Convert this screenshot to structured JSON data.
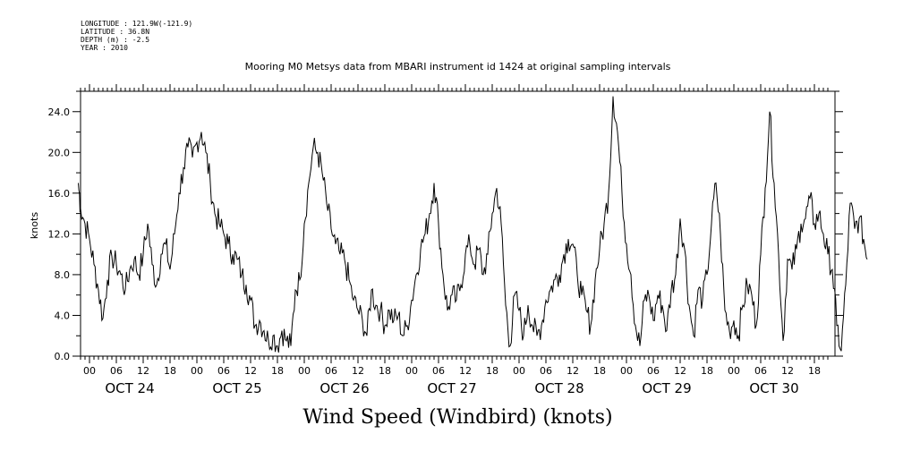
{
  "meta": {
    "longitude": "LONGITUDE : 121.9W(-121.9)",
    "latitude": "LATITUDE : 36.8N",
    "depth": "DEPTH (m) : -2.5",
    "year": "YEAR : 2010"
  },
  "chart_data": {
    "type": "line",
    "title": "Mooring M0 Metsys data from MBARI instrument id 1424 at original sampling intervals",
    "footer": "Wind Speed (Windbird) (knots)",
    "ylabel": "knots",
    "ylim": [
      0,
      26.0
    ],
    "yticks": [
      "0.0",
      "4.0",
      "8.0",
      "12.0",
      "16.0",
      "20.0",
      "24.0"
    ],
    "yvalues": [
      0,
      4,
      8,
      12,
      16,
      20,
      24
    ],
    "xlim_hours": [
      -3,
      165
    ],
    "hour_labels": [
      "00",
      "06",
      "12",
      "18",
      "00",
      "06",
      "12",
      "18",
      "00",
      "06",
      "12",
      "18",
      "00",
      "06",
      "12",
      "18",
      "00",
      "06",
      "12",
      "18",
      "00",
      "06",
      "12",
      "18",
      "00",
      "06",
      "12",
      "18"
    ],
    "day_labels": [
      "OCT 24",
      "OCT 25",
      "OCT 26",
      "OCT 27",
      "OCT 28",
      "OCT 29",
      "OCT 30"
    ],
    "line_color": "#000000",
    "keypoints": [
      [
        -2.5,
        17.0
      ],
      [
        -2,
        14.5
      ],
      [
        -1,
        13.0
      ],
      [
        0,
        11.5
      ],
      [
        1,
        9.0
      ],
      [
        2,
        6.5
      ],
      [
        3,
        3.7
      ],
      [
        4,
        7.5
      ],
      [
        5,
        9.8
      ],
      [
        6,
        9.0
      ],
      [
        7,
        8.0
      ],
      [
        8,
        6.5
      ],
      [
        9,
        8.5
      ],
      [
        10,
        9.5
      ],
      [
        11,
        8.0
      ],
      [
        12,
        10.0
      ],
      [
        13,
        13.0
      ],
      [
        14,
        9.0
      ],
      [
        15,
        7.0
      ],
      [
        16,
        10.0
      ],
      [
        17,
        11.0
      ],
      [
        18,
        8.5
      ],
      [
        19,
        12.0
      ],
      [
        20,
        16.0
      ],
      [
        21,
        18.5
      ],
      [
        22,
        20.5
      ],
      [
        23,
        19.5
      ],
      [
        24,
        21.0
      ],
      [
        25,
        22.0
      ],
      [
        26,
        20.0
      ],
      [
        27,
        17.0
      ],
      [
        28,
        14.0
      ],
      [
        29,
        13.0
      ],
      [
        30,
        12.0
      ],
      [
        31,
        11.0
      ],
      [
        32,
        10.0
      ],
      [
        33,
        9.5
      ],
      [
        34,
        8.0
      ],
      [
        35,
        7.0
      ],
      [
        36,
        5.5
      ],
      [
        37,
        3.0
      ],
      [
        38,
        3.5
      ],
      [
        39,
        2.5
      ],
      [
        40,
        1.5
      ],
      [
        41,
        2.0
      ],
      [
        42,
        1.0
      ],
      [
        43,
        2.5
      ],
      [
        44,
        1.5
      ],
      [
        45,
        1.0
      ],
      [
        46,
        6.5
      ],
      [
        47,
        7.5
      ],
      [
        48,
        13.0
      ],
      [
        49,
        17.0
      ],
      [
        50,
        20.5
      ],
      [
        51,
        20.0
      ],
      [
        52,
        18.0
      ],
      [
        53,
        15.0
      ],
      [
        54,
        12.5
      ],
      [
        55,
        11.0
      ],
      [
        56,
        10.0
      ],
      [
        57,
        9.5
      ],
      [
        58,
        7.5
      ],
      [
        59,
        5.5
      ],
      [
        60,
        4.5
      ],
      [
        61,
        3.5
      ],
      [
        62,
        2.0
      ],
      [
        63,
        6.5
      ],
      [
        64,
        5.0
      ],
      [
        65,
        4.5
      ],
      [
        66,
        3.0
      ],
      [
        67,
        4.5
      ],
      [
        68,
        3.5
      ],
      [
        69,
        4.0
      ],
      [
        70,
        2.0
      ],
      [
        71,
        3.0
      ],
      [
        72,
        5.5
      ],
      [
        73,
        8.0
      ],
      [
        74,
        10.5
      ],
      [
        75,
        12.0
      ],
      [
        76,
        14.0
      ],
      [
        77,
        17.0
      ],
      [
        78,
        13.0
      ],
      [
        79,
        8.0
      ],
      [
        80,
        4.5
      ],
      [
        81,
        6.0
      ],
      [
        82,
        5.5
      ],
      [
        83,
        7.0
      ],
      [
        84,
        10.0
      ],
      [
        85,
        11.0
      ],
      [
        86,
        9.0
      ],
      [
        87,
        10.5
      ],
      [
        88,
        8.0
      ],
      [
        89,
        10.0
      ],
      [
        90,
        14.0
      ],
      [
        91,
        16.5
      ],
      [
        92,
        13.0
      ],
      [
        93,
        5.0
      ],
      [
        94,
        1.0
      ],
      [
        95,
        6.0
      ],
      [
        96,
        4.5
      ],
      [
        97,
        2.0
      ],
      [
        98,
        5.0
      ],
      [
        99,
        3.0
      ],
      [
        100,
        2.0
      ],
      [
        101,
        3.0
      ],
      [
        102,
        5.5
      ],
      [
        103,
        6.5
      ],
      [
        104,
        7.5
      ],
      [
        105,
        8.0
      ],
      [
        106,
        10.0
      ],
      [
        107,
        11.5
      ],
      [
        108,
        11.0
      ],
      [
        109,
        8.0
      ],
      [
        110,
        6.0
      ],
      [
        111,
        4.5
      ],
      [
        112,
        3.0
      ],
      [
        113,
        7.5
      ],
      [
        114,
        10.5
      ],
      [
        115,
        13.0
      ],
      [
        116,
        16.0
      ],
      [
        117,
        25.5
      ],
      [
        118,
        22.0
      ],
      [
        119,
        16.0
      ],
      [
        120,
        11.0
      ],
      [
        121,
        8.0
      ],
      [
        122,
        3.0
      ],
      [
        123,
        1.0
      ],
      [
        124,
        5.5
      ],
      [
        125,
        6.0
      ],
      [
        126,
        3.5
      ],
      [
        127,
        6.0
      ],
      [
        128,
        5.0
      ],
      [
        129,
        2.5
      ],
      [
        130,
        6.5
      ],
      [
        131,
        8.0
      ],
      [
        132,
        13.5
      ],
      [
        133,
        10.5
      ],
      [
        134,
        5.0
      ],
      [
        135,
        2.0
      ],
      [
        136,
        6.5
      ],
      [
        137,
        5.5
      ],
      [
        138,
        8.0
      ],
      [
        139,
        13.0
      ],
      [
        140,
        17.0
      ],
      [
        141,
        12.0
      ],
      [
        142,
        4.5
      ],
      [
        143,
        2.5
      ],
      [
        144,
        3.5
      ],
      [
        145,
        2.0
      ],
      [
        146,
        5.0
      ],
      [
        147,
        7.0
      ],
      [
        148,
        6.0
      ],
      [
        149,
        3.0
      ],
      [
        150,
        10.0
      ],
      [
        151,
        16.5
      ],
      [
        152,
        24.0
      ],
      [
        153,
        17.0
      ],
      [
        154,
        10.0
      ],
      [
        155,
        1.5
      ],
      [
        156,
        9.5
      ],
      [
        157,
        8.5
      ],
      [
        158,
        10.5
      ],
      [
        159,
        13.0
      ],
      [
        160,
        13.5
      ],
      [
        161,
        15.5
      ],
      [
        162,
        13.0
      ],
      [
        163,
        14.0
      ],
      [
        164,
        12.0
      ],
      [
        165,
        10.0
      ],
      [
        166,
        8.5
      ],
      [
        167,
        3.0
      ],
      [
        168,
        0.5
      ],
      [
        169,
        7.0
      ],
      [
        170,
        15.0
      ],
      [
        171,
        12.5
      ],
      [
        172,
        13.5
      ],
      [
        173,
        11.5
      ],
      [
        173.8,
        9.5
      ]
    ]
  }
}
